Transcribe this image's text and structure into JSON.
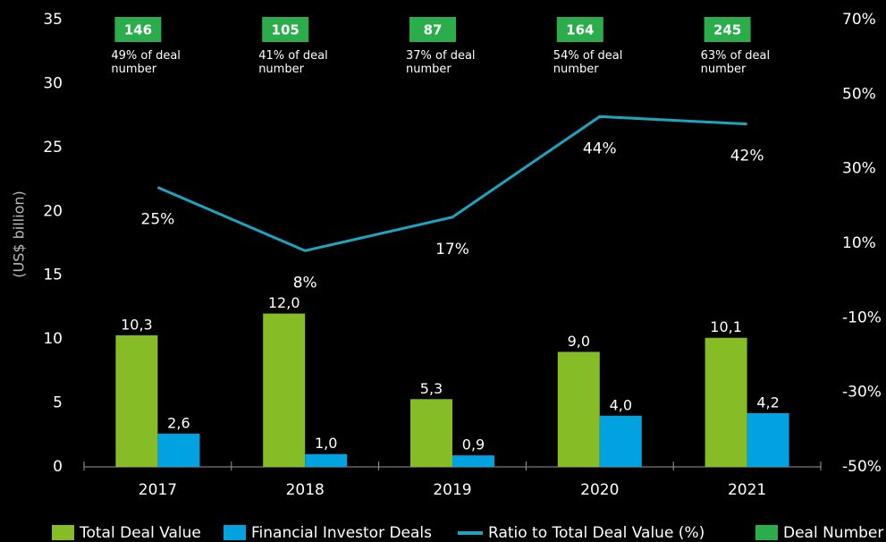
{
  "chart_data": {
    "type": "bar",
    "y_axis_label": "(US$ billion)",
    "categories": [
      "2017",
      "2018",
      "2019",
      "2020",
      "2021"
    ],
    "series": [
      {
        "name": "Total Deal Value",
        "type": "bar",
        "color": "#86bc25",
        "values": [
          10.3,
          12.0,
          5.3,
          9.0,
          10.1
        ],
        "value_labels": [
          "10,3",
          "12,0",
          "5,3",
          "9,0",
          "10,1"
        ]
      },
      {
        "name": "Financial Investor Deals",
        "type": "bar",
        "color": "#00a3e0",
        "values": [
          2.6,
          1.0,
          0.9,
          4.0,
          4.2
        ],
        "value_labels": [
          "2,6",
          "1,0",
          "0,9",
          "4,0",
          "4,2"
        ]
      },
      {
        "name": "Ratio to Total Deal Value (%)",
        "type": "line",
        "axis": "y2",
        "color": "#1ba6be",
        "values": [
          25,
          8,
          17,
          44,
          42
        ],
        "value_labels": [
          "25%",
          "8%",
          "17%",
          "44%",
          "42%"
        ]
      },
      {
        "name": "Deal Number",
        "type": "label",
        "color": "#2aad4a",
        "values": [
          146,
          105,
          87,
          164,
          245
        ]
      }
    ],
    "annotations": [
      "49% of deal number",
      "41% of deal number",
      "37% of deal number",
      "54% of deal number",
      "63% of deal number"
    ],
    "ylim": [
      0,
      35
    ],
    "yticks": [
      0,
      5,
      10,
      15,
      20,
      25,
      30,
      35
    ],
    "y2lim": [
      -50,
      70
    ],
    "y2ticks": [
      {
        "value": -50,
        "label": "-50%"
      },
      {
        "value": -30,
        "label": "-30%"
      },
      {
        "value": -10,
        "label": "-10%"
      },
      {
        "value": 10,
        "label": "10%"
      },
      {
        "value": 30,
        "label": "30%"
      },
      {
        "value": 50,
        "label": "50%"
      },
      {
        "value": 70,
        "label": "70%"
      }
    ]
  }
}
